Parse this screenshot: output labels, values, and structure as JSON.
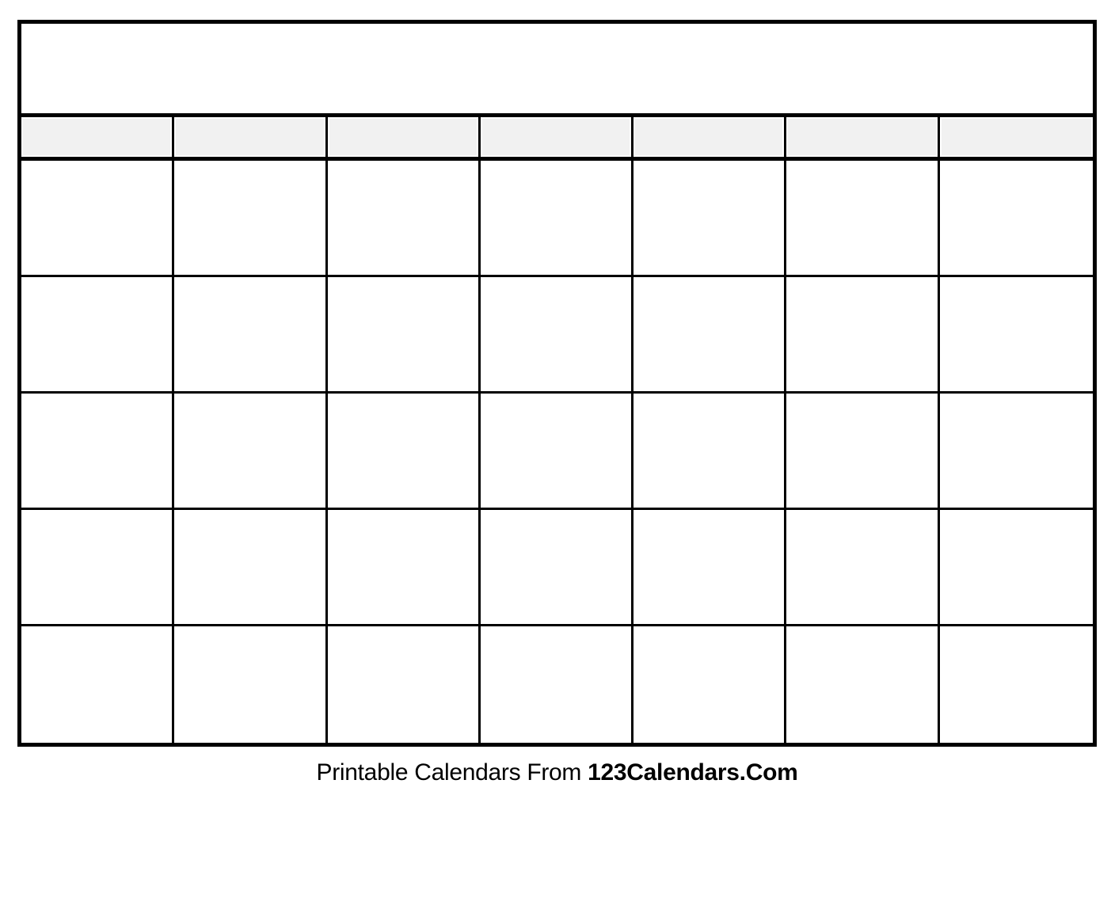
{
  "page": {
    "background_color": "#ffffff"
  },
  "calendar": {
    "border_color": "#000000",
    "header_bg_color": "#f1f1f1",
    "title_text": "",
    "day_headers": [
      "",
      "",
      "",
      "",
      "",
      "",
      ""
    ],
    "grid": {
      "rows": 5,
      "cols": 7,
      "cells": [
        [
          "",
          "",
          "",
          "",
          "",
          "",
          ""
        ],
        [
          "",
          "",
          "",
          "",
          "",
          "",
          ""
        ],
        [
          "",
          "",
          "",
          "",
          "",
          "",
          ""
        ],
        [
          "",
          "",
          "",
          "",
          "",
          "",
          ""
        ],
        [
          "",
          "",
          "",
          "",
          "",
          "",
          ""
        ]
      ]
    }
  },
  "footer": {
    "text_regular": "Printable Calendars From ",
    "text_bold": "123Calendars.Com"
  }
}
